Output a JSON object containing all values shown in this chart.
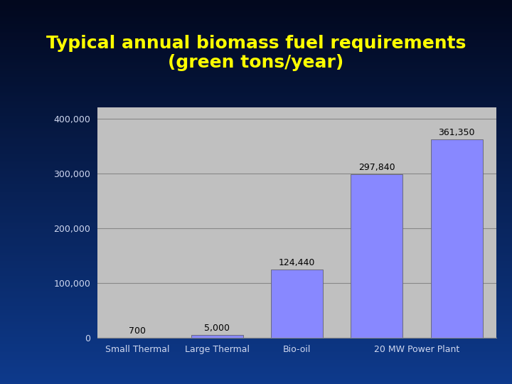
{
  "title": "Typical annual biomass fuel requirements\n(green tons/year)",
  "categories": [
    "Small Thermal",
    "Large Thermal",
    "Bio-oil",
    "20 MW Power Plant"
  ],
  "x_tick_positions": [
    0,
    1,
    2,
    3.5
  ],
  "bar_x_positions": [
    0,
    1,
    2,
    3,
    4
  ],
  "values": [
    700,
    5000,
    124440,
    297840,
    361350
  ],
  "labels": [
    "700",
    "5,000",
    "124,440",
    "297,840",
    "361,350"
  ],
  "bar_color": "#8888ff",
  "bar_edge_color": "#555555",
  "plot_bg_color": "#c0c0c0",
  "fig_bg_gradient_top": "#000820",
  "fig_bg_color": "#1040a0",
  "title_color": "#ffff00",
  "tick_label_color": "#d0d8f0",
  "yticks": [
    0,
    100000,
    200000,
    300000,
    400000
  ],
  "ytick_labels": [
    "0",
    "100,000",
    "200,000",
    "300,000",
    "400,000"
  ],
  "ylim": [
    0,
    420000
  ],
  "title_fontsize": 18,
  "tick_fontsize": 9,
  "value_label_fontsize": 9,
  "grid_color": "#888888",
  "grid_linewidth": 0.8,
  "bar_width": 0.65
}
